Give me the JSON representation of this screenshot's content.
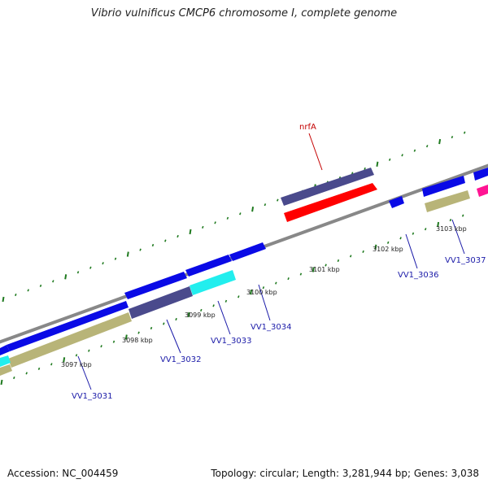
{
  "title": "Vibrio vulnificus CMCP6 chromosome I, complete genome",
  "footer": {
    "accession": "Accession: NC_004459",
    "stats": "Topology: circular; Length: 3,281,944 bp; Genes: 3,038"
  },
  "colors": {
    "backbone": "#8a8a8a",
    "blue_gene": "#0a0ae6",
    "slate_gene": "#4a4a8c",
    "red_gene": "#ff0000",
    "cyan_gene": "#22eeee",
    "khaki_gene": "#b8b478",
    "magenta_gene": "#ff1493",
    "tick": "#1f7a1f",
    "gene_label": "#1a1aa8",
    "highlight_label": "#c40000"
  },
  "kbp_labels": [
    "3097 kbp",
    "3098 kbp",
    "3099 kbp",
    "3100 kbp",
    "3101 kbp",
    "3102 kbp",
    "3103 kbp"
  ],
  "gene_labels": [
    "VV1_3031",
    "VV1_3032",
    "VV1_3033",
    "VV1_3034",
    "VV1_3036",
    "VV1_3037"
  ],
  "highlight_label": "nrfA"
}
